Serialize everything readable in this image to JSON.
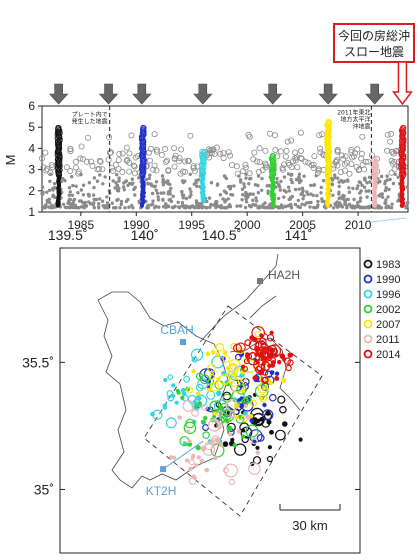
{
  "callout": {
    "line1": "今回の房総沖",
    "line2": "スロー地震"
  },
  "colors": {
    "1983": "#111111",
    "1990": "#1f2fc8",
    "1996": "#33d6e0",
    "2002": "#2fd12f",
    "2007": "#ffe600",
    "2011": "#f0b6b6",
    "2014": "#e01010",
    "background": "#8a8a8a",
    "box_red": "#d71f1f",
    "station": "#5aa0d8",
    "arrow": "#666666"
  },
  "chart_data": [
    {
      "type": "scatter",
      "title": "",
      "xlabel": "",
      "ylabel": "M",
      "xlim": [
        1981.5,
        2014.5
      ],
      "ylim": [
        1,
        6
      ],
      "x_ticks": [
        "1985",
        "1990",
        "1995",
        "2000",
        "2005",
        "2010"
      ],
      "y_ticks": [
        "1",
        "2",
        "3",
        "4",
        "5",
        "6"
      ],
      "arrows_x": [
        1983,
        1987.5,
        1990.5,
        1996,
        2002.3,
        2007.3,
        2011.5
      ],
      "red_arrow_x": 2014,
      "annotations": [
        {
          "text": "プレート内で\n発生した地震",
          "x": 1987.6,
          "y": 5.5
        },
        {
          "text": "2011年東北\n地方太平洋\n沖地震",
          "x": 2011.3,
          "y": 5.6
        }
      ],
      "vertical_lines_x": [
        1987.6,
        2011.2
      ],
      "series": [
        {
          "name": "1983",
          "x": 1983.0,
          "m_max": 5.0,
          "m_min": 1.3
        },
        {
          "name": "1990",
          "x": 1990.6,
          "m_max": 5.0,
          "m_min": 1.3
        },
        {
          "name": "1996",
          "x": 1996.0,
          "m_max": 3.9,
          "m_min": 1.5
        },
        {
          "name": "2002",
          "x": 2002.3,
          "m_max": 3.7,
          "m_min": 1.3
        },
        {
          "name": "2007",
          "x": 2007.3,
          "m_max": 5.3,
          "m_min": 1.3
        },
        {
          "name": "2011",
          "x": 2011.5,
          "m_max": 3.5,
          "m_min": 1.3
        },
        {
          "name": "2014",
          "x": 2014.0,
          "m_max": 5.0,
          "m_min": 1.3
        }
      ]
    },
    {
      "type": "map",
      "x_ticks": [
        "139.5˚",
        "140˚",
        "140.5˚",
        "141˚"
      ],
      "y_ticks": [
        "35.5˚",
        "35˚"
      ],
      "xlim": [
        139.45,
        141.4
      ],
      "ylim": [
        34.75,
        35.95
      ],
      "stations": [
        {
          "name": "HA2H",
          "lon": 140.75,
          "lat": 35.82
        },
        {
          "name": "CBAH",
          "lon": 140.25,
          "lat": 35.58
        },
        {
          "name": "KT2H",
          "lon": 140.12,
          "lat": 35.08
        }
      ],
      "legend": [
        "1983",
        "1990",
        "1996",
        "2002",
        "2007",
        "2011",
        "2014"
      ],
      "scale_label": "30 km"
    }
  ]
}
